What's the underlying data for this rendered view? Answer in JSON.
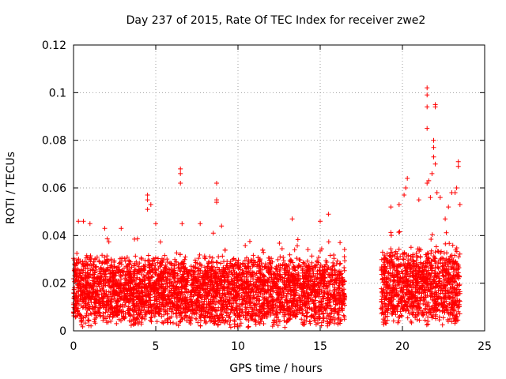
{
  "chart_data": {
    "type": "scatter",
    "title": "Day 237 of 2015, Rate Of TEC Index for receiver zwe2",
    "xlabel": "GPS time / hours",
    "ylabel": "ROTI / TECUs",
    "xlim": [
      0,
      25
    ],
    "ylim": [
      0,
      0.12
    ],
    "xticks": [
      0,
      5,
      10,
      15,
      20,
      25
    ],
    "xtick_labels": [
      "0",
      "5",
      "10",
      "15",
      "20",
      "25"
    ],
    "yticks": [
      0,
      0.02,
      0.04,
      0.06,
      0.08,
      0.1,
      0.12
    ],
    "ytick_labels": [
      "0",
      "0.02",
      "0.04",
      "0.06",
      "0.08",
      "0.1",
      "0.12"
    ],
    "grid": true,
    "marker": "plus",
    "color": "#ff0000",
    "series": [
      {
        "name": "ROTI",
        "segments": [
          {
            "x_start": 0.0,
            "x_end": 16.5,
            "y_min": 0.001,
            "y_typical_max": 0.032
          },
          {
            "x_start": 18.7,
            "x_end": 23.5,
            "y_min": 0.002,
            "y_typical_max": 0.035
          }
        ],
        "notable_points": [
          {
            "x": 0.3,
            "y": 0.046
          },
          {
            "x": 0.6,
            "y": 0.046
          },
          {
            "x": 1.0,
            "y": 0.045
          },
          {
            "x": 1.9,
            "y": 0.043
          },
          {
            "x": 2.9,
            "y": 0.043
          },
          {
            "x": 4.5,
            "y": 0.057
          },
          {
            "x": 4.5,
            "y": 0.055
          },
          {
            "x": 4.5,
            "y": 0.051
          },
          {
            "x": 4.7,
            "y": 0.053
          },
          {
            "x": 5.0,
            "y": 0.045
          },
          {
            "x": 6.5,
            "y": 0.068
          },
          {
            "x": 6.5,
            "y": 0.066
          },
          {
            "x": 6.5,
            "y": 0.062
          },
          {
            "x": 6.6,
            "y": 0.045
          },
          {
            "x": 7.7,
            "y": 0.045
          },
          {
            "x": 8.7,
            "y": 0.062
          },
          {
            "x": 8.7,
            "y": 0.055
          },
          {
            "x": 8.7,
            "y": 0.054
          },
          {
            "x": 8.5,
            "y": 0.041
          },
          {
            "x": 9.0,
            "y": 0.044
          },
          {
            "x": 13.3,
            "y": 0.047
          },
          {
            "x": 15.0,
            "y": 0.046
          },
          {
            "x": 15.5,
            "y": 0.049
          },
          {
            "x": 19.3,
            "y": 0.052
          },
          {
            "x": 19.8,
            "y": 0.053
          },
          {
            "x": 20.1,
            "y": 0.057
          },
          {
            "x": 20.2,
            "y": 0.06
          },
          {
            "x": 20.3,
            "y": 0.064
          },
          {
            "x": 21.0,
            "y": 0.055
          },
          {
            "x": 21.5,
            "y": 0.102
          },
          {
            "x": 21.5,
            "y": 0.099
          },
          {
            "x": 21.5,
            "y": 0.094
          },
          {
            "x": 21.5,
            "y": 0.085
          },
          {
            "x": 21.6,
            "y": 0.063
          },
          {
            "x": 21.5,
            "y": 0.062
          },
          {
            "x": 22.0,
            "y": 0.095
          },
          {
            "x": 22.0,
            "y": 0.094
          },
          {
            "x": 21.9,
            "y": 0.08
          },
          {
            "x": 21.9,
            "y": 0.077
          },
          {
            "x": 21.9,
            "y": 0.073
          },
          {
            "x": 22.0,
            "y": 0.07
          },
          {
            "x": 21.8,
            "y": 0.066
          },
          {
            "x": 22.1,
            "y": 0.058
          },
          {
            "x": 21.7,
            "y": 0.056
          },
          {
            "x": 22.3,
            "y": 0.056
          },
          {
            "x": 23.4,
            "y": 0.071
          },
          {
            "x": 23.4,
            "y": 0.069
          },
          {
            "x": 23.3,
            "y": 0.06
          },
          {
            "x": 23.0,
            "y": 0.058
          },
          {
            "x": 23.2,
            "y": 0.058
          },
          {
            "x": 23.5,
            "y": 0.053
          },
          {
            "x": 22.8,
            "y": 0.052
          },
          {
            "x": 22.6,
            "y": 0.047
          }
        ]
      }
    ]
  }
}
